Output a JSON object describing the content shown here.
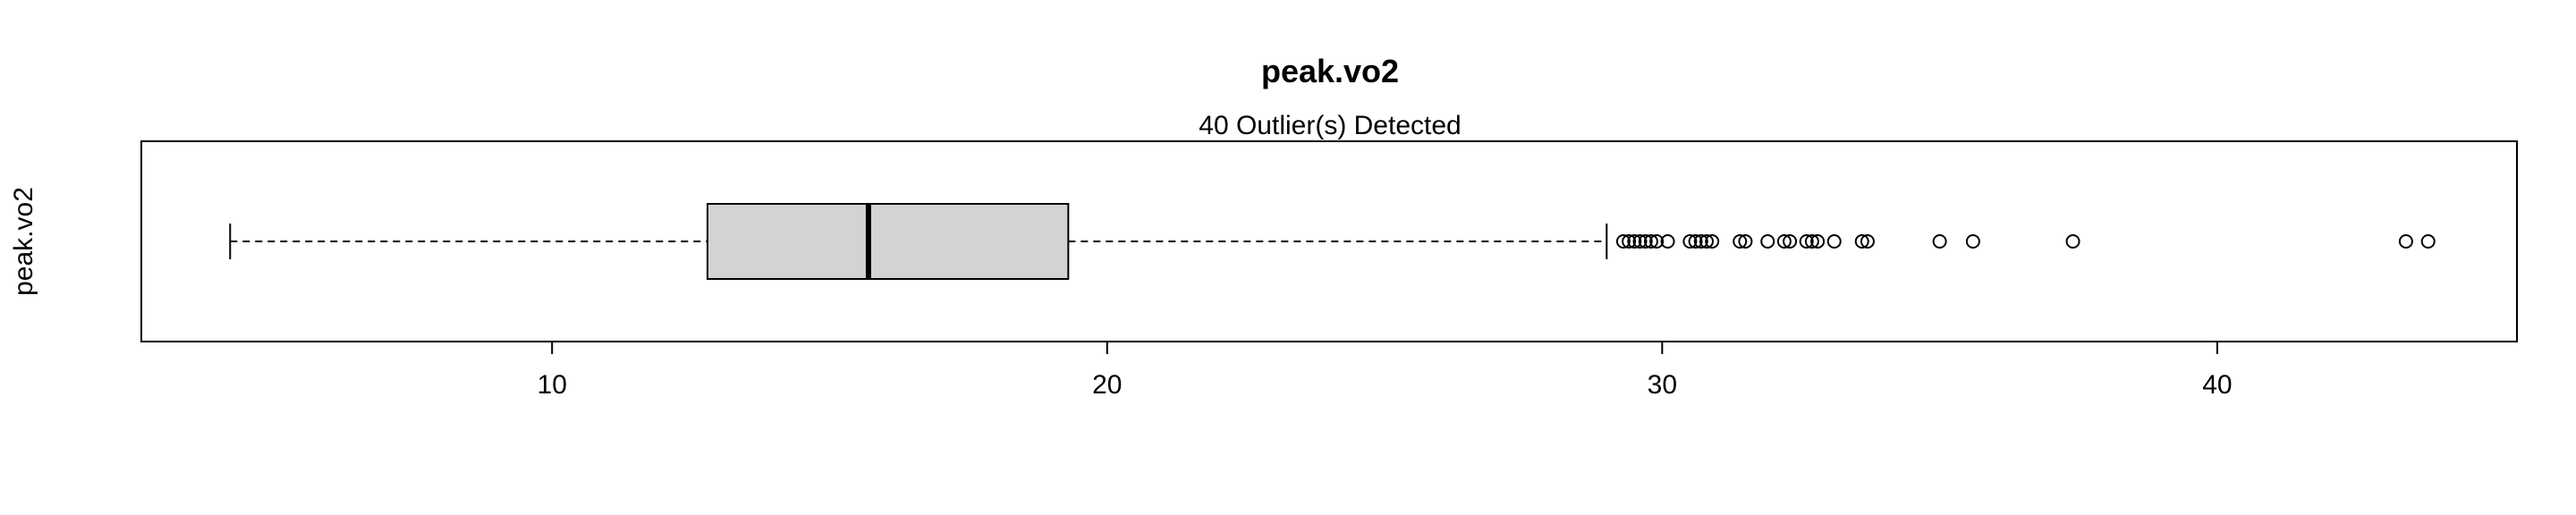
{
  "chart_data": {
    "type": "boxplot",
    "orientation": "horizontal",
    "title": "peak.vo2",
    "subtitle": "40 Outlier(s) Detected",
    "ylabel": "peak.vo2",
    "xlim": [
      2.6,
      45.4
    ],
    "x_ticks": [
      10,
      20,
      30,
      40
    ],
    "x_tick_labels": [
      "10",
      "20",
      "30",
      "40"
    ],
    "colors": {
      "box_fill": "#d3d3d3",
      "stroke": "#000000"
    },
    "box": {
      "whisker_low": 4.2,
      "q1": 12.8,
      "median": 15.7,
      "q3": 19.3,
      "whisker_high": 29.0
    },
    "outliers": [
      29.3,
      29.4,
      29.5,
      29.6,
      29.7,
      29.8,
      29.9,
      30.1,
      30.5,
      30.6,
      30.7,
      30.8,
      30.9,
      31.4,
      31.5,
      31.9,
      32.2,
      32.3,
      32.6,
      32.7,
      32.8,
      33.1,
      33.6,
      33.7,
      35.0,
      35.6,
      37.4,
      43.4,
      43.8
    ]
  }
}
